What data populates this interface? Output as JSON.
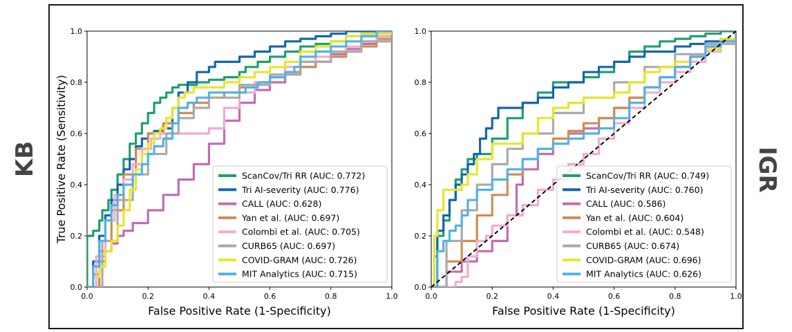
{
  "side_labels": {
    "left": "KB",
    "right": "IGR"
  },
  "colors": {
    "ScanCov": "#1f9e6e",
    "TriAI": "#1565b0",
    "CALL": "#c46bb0",
    "Yan": "#d08c50",
    "Colombi": "#efacd4",
    "CURB65": "#aaaaaa",
    "COVIDGRAM": "#e6e62a",
    "MIT": "#52b2e8",
    "diagonal": "#000000"
  },
  "chart_data": [
    {
      "type": "line",
      "panel": "KB",
      "xlabel": "False Positive Rate (1-Specificity)",
      "ylabel": "True Positive Rate (Sensitivity)",
      "xlim": [
        0,
        1
      ],
      "ylim": [
        0,
        1
      ],
      "xticks": [
        "0.0",
        "0.2",
        "0.4",
        "0.6",
        "0.8",
        "1.0"
      ],
      "yticks": [
        "0.0",
        "0.2",
        "0.4",
        "0.6",
        "0.8",
        "1.0"
      ],
      "legend_position": "lower-right",
      "diagonal": false,
      "series": [
        {
          "name": "ScanCov/Tri RR (AUC: 0.772)",
          "color_key": "ScanCov",
          "x": [
            0,
            0,
            0.02,
            0.02,
            0.04,
            0.05,
            0.07,
            0.08,
            0.1,
            0.12,
            0.14,
            0.16,
            0.18,
            0.2,
            0.22,
            0.24,
            0.26,
            0.28,
            0.3,
            0.33,
            0.36,
            0.4,
            0.45,
            0.5,
            0.52,
            0.56,
            0.6,
            0.65,
            0.7,
            0.75,
            0.8,
            0.85,
            0.9,
            0.95,
            1.0
          ],
          "y": [
            0,
            0.2,
            0.2,
            0.22,
            0.26,
            0.3,
            0.34,
            0.38,
            0.44,
            0.5,
            0.56,
            0.6,
            0.64,
            0.68,
            0.72,
            0.74,
            0.76,
            0.78,
            0.79,
            0.79,
            0.8,
            0.81,
            0.82,
            0.84,
            0.86,
            0.88,
            0.9,
            0.92,
            0.94,
            0.95,
            0.96,
            0.98,
            0.99,
            1.0,
            1.0
          ]
        },
        {
          "name": "Tri AI-severity (AUC: 0.776)",
          "color_key": "TriAI",
          "x": [
            0,
            0.02,
            0.04,
            0.06,
            0.08,
            0.1,
            0.12,
            0.14,
            0.16,
            0.18,
            0.2,
            0.22,
            0.25,
            0.28,
            0.3,
            0.33,
            0.36,
            0.4,
            0.42,
            0.44,
            0.47,
            0.5,
            0.55,
            0.6,
            0.65,
            0.7,
            0.75,
            0.8,
            0.85,
            0.9,
            1.0
          ],
          "y": [
            0,
            0.1,
            0.2,
            0.28,
            0.34,
            0.4,
            0.46,
            0.5,
            0.55,
            0.58,
            0.6,
            0.61,
            0.62,
            0.7,
            0.76,
            0.8,
            0.84,
            0.86,
            0.88,
            0.88,
            0.88,
            0.9,
            0.92,
            0.94,
            0.96,
            0.97,
            0.98,
            0.99,
            1.0,
            1.0,
            1.0
          ]
        },
        {
          "name": "CALL (AUC: 0.628)",
          "color_key": "CALL",
          "x": [
            0,
            0.02,
            0.04,
            0.06,
            0.08,
            0.1,
            0.12,
            0.15,
            0.2,
            0.25,
            0.3,
            0.35,
            0.4,
            0.45,
            0.5,
            0.55,
            0.6,
            0.65,
            0.7,
            0.75,
            0.8,
            0.85,
            0.9,
            0.95,
            0.97,
            1.0
          ],
          "y": [
            0,
            0.05,
            0.1,
            0.14,
            0.17,
            0.2,
            0.22,
            0.25,
            0.3,
            0.36,
            0.42,
            0.48,
            0.56,
            0.65,
            0.72,
            0.77,
            0.8,
            0.83,
            0.86,
            0.88,
            0.91,
            0.93,
            0.95,
            0.96,
            0.96,
            1.0
          ]
        },
        {
          "name": "Yan et al. (AUC: 0.697)",
          "color_key": "Yan",
          "x": [
            0,
            0.04,
            0.08,
            0.12,
            0.16,
            0.2,
            0.25,
            0.3,
            0.35,
            0.4,
            0.45,
            0.5,
            0.55,
            0.6,
            0.65,
            0.7,
            0.75,
            0.8,
            0.85,
            0.9,
            0.95,
            1.0
          ],
          "y": [
            0,
            0.14,
            0.3,
            0.44,
            0.54,
            0.6,
            0.64,
            0.68,
            0.72,
            0.74,
            0.76,
            0.78,
            0.8,
            0.82,
            0.84,
            0.86,
            0.88,
            0.9,
            0.92,
            0.94,
            0.97,
            1.0
          ]
        },
        {
          "name": "Colombi et al. (AUC: 0.705)",
          "color_key": "Colombi",
          "x": [
            0,
            0.03,
            0.06,
            0.09,
            0.12,
            0.15,
            0.18,
            0.21,
            0.24,
            0.27,
            0.3,
            0.33,
            0.36,
            0.4,
            0.45,
            0.5,
            0.55,
            0.6,
            0.65,
            0.7,
            0.75,
            0.8,
            0.85,
            0.9,
            0.95,
            1.0
          ],
          "y": [
            0,
            0.12,
            0.26,
            0.36,
            0.42,
            0.48,
            0.54,
            0.58,
            0.6,
            0.6,
            0.6,
            0.6,
            0.6,
            0.62,
            0.7,
            0.76,
            0.8,
            0.82,
            0.86,
            0.88,
            0.9,
            0.92,
            0.94,
            0.96,
            0.98,
            1.0
          ]
        },
        {
          "name": "CURB65 (AUC: 0.697)",
          "color_key": "CURB65",
          "x": [
            0,
            0.05,
            0.1,
            0.15,
            0.2,
            0.26,
            0.3,
            0.35,
            0.4,
            0.5,
            0.6,
            0.7,
            0.8,
            0.9,
            1.0
          ],
          "y": [
            0,
            0.18,
            0.34,
            0.44,
            0.52,
            0.6,
            0.66,
            0.7,
            0.74,
            0.79,
            0.83,
            0.88,
            0.92,
            0.96,
            1.0
          ]
        },
        {
          "name": "COVID-GRAM (AUC: 0.726)",
          "color_key": "COVIDGRAM",
          "x": [
            0,
            0.02,
            0.04,
            0.06,
            0.08,
            0.1,
            0.12,
            0.14,
            0.16,
            0.18,
            0.2,
            0.22,
            0.24,
            0.26,
            0.28,
            0.3,
            0.32,
            0.35,
            0.4,
            0.45,
            0.5,
            0.55,
            0.6,
            0.65,
            0.7,
            0.75,
            0.8,
            0.85,
            0.9,
            1.0
          ],
          "y": [
            0,
            0.04,
            0.08,
            0.14,
            0.18,
            0.24,
            0.3,
            0.38,
            0.46,
            0.52,
            0.56,
            0.6,
            0.62,
            0.66,
            0.7,
            0.74,
            0.76,
            0.78,
            0.78,
            0.8,
            0.82,
            0.84,
            0.86,
            0.88,
            0.92,
            0.94,
            0.96,
            0.98,
            0.99,
            1.0
          ]
        },
        {
          "name": "MIT Analytics (AUC: 0.715)",
          "color_key": "MIT",
          "x": [
            0,
            0.02,
            0.04,
            0.06,
            0.08,
            0.1,
            0.12,
            0.15,
            0.18,
            0.2,
            0.22,
            0.25,
            0.28,
            0.3,
            0.33,
            0.36,
            0.4,
            0.44,
            0.48,
            0.52,
            0.56,
            0.6,
            0.65,
            0.68,
            0.7,
            0.75,
            0.8,
            0.85,
            0.9,
            0.95,
            1.0
          ],
          "y": [
            0,
            0.08,
            0.18,
            0.26,
            0.32,
            0.36,
            0.4,
            0.44,
            0.48,
            0.52,
            0.55,
            0.58,
            0.64,
            0.7,
            0.72,
            0.74,
            0.76,
            0.76,
            0.76,
            0.78,
            0.8,
            0.82,
            0.84,
            0.86,
            0.9,
            0.92,
            0.94,
            0.96,
            0.98,
            1.0,
            1.0
          ]
        }
      ]
    },
    {
      "type": "line",
      "panel": "IGR",
      "xlabel": "False Positive Rate (1-Specificity)",
      "ylabel": "",
      "xlim": [
        0,
        1
      ],
      "ylim": [
        0,
        1
      ],
      "xticks": [
        "0.0",
        "0.2",
        "0.4",
        "0.6",
        "0.8",
        "1.0"
      ],
      "yticks": [
        "0.0",
        "0.2",
        "0.4",
        "0.6",
        "0.8",
        "1.0"
      ],
      "legend_position": "lower-right",
      "diagonal": true,
      "series": [
        {
          "name": "ScanCov/Tri RR (AUC: 0.749)",
          "color_key": "ScanCov",
          "x": [
            0,
            0.01,
            0.02,
            0.04,
            0.06,
            0.08,
            0.1,
            0.12,
            0.15,
            0.2,
            0.25,
            0.3,
            0.35,
            0.4,
            0.45,
            0.5,
            0.55,
            0.6,
            0.65,
            0.7,
            0.75,
            0.8,
            0.85,
            0.9,
            0.95,
            1.0
          ],
          "y": [
            0,
            0.12,
            0.2,
            0.26,
            0.34,
            0.42,
            0.46,
            0.5,
            0.52,
            0.58,
            0.66,
            0.72,
            0.76,
            0.8,
            0.8,
            0.82,
            0.84,
            0.88,
            0.92,
            0.94,
            0.96,
            0.97,
            0.98,
            0.99,
            1.0,
            1.0
          ]
        },
        {
          "name": "Tri AI-severity (AUC: 0.760)",
          "color_key": "TriAI",
          "x": [
            0,
            0.02,
            0.04,
            0.06,
            0.08,
            0.1,
            0.12,
            0.14,
            0.16,
            0.18,
            0.2,
            0.22,
            0.25,
            0.3,
            0.35,
            0.4,
            0.45,
            0.5,
            0.55,
            0.6,
            0.65,
            0.7,
            0.75,
            0.8,
            0.85,
            0.9,
            0.95,
            1.0
          ],
          "y": [
            0,
            0.22,
            0.28,
            0.34,
            0.4,
            0.44,
            0.48,
            0.52,
            0.58,
            0.62,
            0.66,
            0.7,
            0.7,
            0.72,
            0.74,
            0.78,
            0.8,
            0.84,
            0.86,
            0.88,
            0.9,
            0.92,
            0.92,
            0.94,
            0.95,
            0.96,
            0.97,
            1.0
          ]
        },
        {
          "name": "CALL (AUC: 0.586)",
          "color_key": "CALL",
          "x": [
            0,
            0.05,
            0.1,
            0.15,
            0.2,
            0.25,
            0.28,
            0.3,
            0.35,
            0.4,
            0.45,
            0.5,
            0.55,
            0.6,
            0.65,
            0.7,
            0.75,
            0.8,
            0.85,
            0.9,
            0.95,
            1.0
          ],
          "y": [
            0,
            0.06,
            0.1,
            0.14,
            0.18,
            0.28,
            0.4,
            0.46,
            0.52,
            0.56,
            0.6,
            0.62,
            0.66,
            0.7,
            0.74,
            0.78,
            0.82,
            0.86,
            0.9,
            0.94,
            0.97,
            1.0
          ]
        },
        {
          "name": "Yan et al. (AUC: 0.604)",
          "color_key": "Yan",
          "x": [
            0,
            0.05,
            0.1,
            0.15,
            0.2,
            0.25,
            0.3,
            0.35,
            0.4,
            0.45,
            0.5,
            0.55,
            0.6,
            0.65,
            0.7,
            0.75,
            0.8,
            0.85,
            0.9,
            0.95,
            1.0
          ],
          "y": [
            0,
            0.1,
            0.18,
            0.28,
            0.36,
            0.44,
            0.5,
            0.54,
            0.58,
            0.61,
            0.64,
            0.66,
            0.7,
            0.74,
            0.78,
            0.82,
            0.86,
            0.9,
            0.94,
            0.97,
            1.0
          ]
        },
        {
          "name": "Colombi et al. (AUC: 0.548)",
          "color_key": "Colombi",
          "x": [
            0,
            0.02,
            0.05,
            0.08,
            0.1,
            0.12,
            0.15,
            0.18,
            0.2,
            0.25,
            0.3,
            0.35,
            0.4,
            0.45,
            0.5,
            0.55,
            0.6,
            0.65,
            0.7,
            0.75,
            0.8,
            0.85,
            0.9,
            0.95,
            1.0
          ],
          "y": [
            0,
            0.0,
            0.0,
            0.02,
            0.04,
            0.12,
            0.18,
            0.2,
            0.24,
            0.28,
            0.32,
            0.38,
            0.42,
            0.48,
            0.52,
            0.58,
            0.64,
            0.7,
            0.76,
            0.8,
            0.84,
            0.88,
            0.92,
            0.96,
            1.0
          ]
        },
        {
          "name": "CURB65 (AUC: 0.674)",
          "color_key": "CURB65",
          "x": [
            0,
            0.05,
            0.1,
            0.15,
            0.2,
            0.25,
            0.3,
            0.4,
            0.5,
            0.6,
            0.7,
            0.8,
            0.9,
            1.0
          ],
          "y": [
            0,
            0.18,
            0.3,
            0.4,
            0.48,
            0.54,
            0.6,
            0.68,
            0.74,
            0.8,
            0.86,
            0.91,
            0.95,
            1.0
          ]
        },
        {
          "name": "COVID-GRAM (AUC: 0.696)",
          "color_key": "COVIDGRAM",
          "x": [
            0,
            0.01,
            0.02,
            0.04,
            0.06,
            0.08,
            0.1,
            0.12,
            0.15,
            0.2,
            0.25,
            0.3,
            0.35,
            0.4,
            0.45,
            0.5,
            0.55,
            0.6,
            0.65,
            0.7,
            0.75,
            0.8,
            0.85,
            0.9,
            0.95,
            1.0
          ],
          "y": [
            0,
            0.2,
            0.3,
            0.38,
            0.38,
            0.38,
            0.4,
            0.44,
            0.5,
            0.56,
            0.56,
            0.6,
            0.66,
            0.7,
            0.72,
            0.74,
            0.74,
            0.76,
            0.8,
            0.84,
            0.86,
            0.88,
            0.9,
            0.93,
            0.97,
            1.0
          ]
        },
        {
          "name": "MIT Analytics (AUC: 0.626)",
          "color_key": "MIT",
          "x": [
            0,
            0.02,
            0.04,
            0.06,
            0.08,
            0.1,
            0.12,
            0.15,
            0.2,
            0.25,
            0.3,
            0.35,
            0.4,
            0.45,
            0.5,
            0.55,
            0.6,
            0.65,
            0.7,
            0.75,
            0.8,
            0.85,
            0.9,
            0.95,
            1.0
          ],
          "y": [
            0,
            0.14,
            0.18,
            0.22,
            0.24,
            0.28,
            0.34,
            0.38,
            0.42,
            0.46,
            0.5,
            0.54,
            0.56,
            0.58,
            0.6,
            0.62,
            0.66,
            0.72,
            0.78,
            0.82,
            0.86,
            0.9,
            0.94,
            0.96,
            1.0
          ]
        }
      ]
    }
  ]
}
